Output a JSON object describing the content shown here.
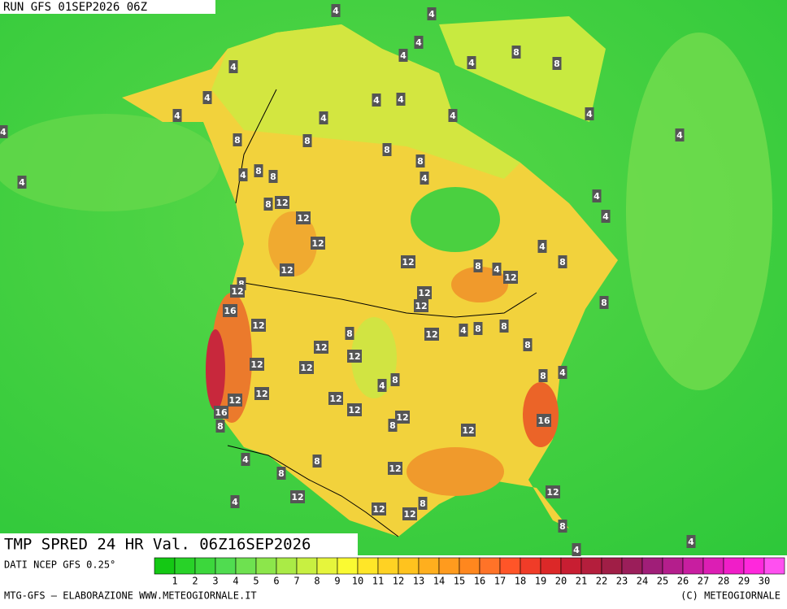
{
  "header": {
    "run": "RUN GFS 01SEP2026 06Z"
  },
  "map": {
    "labels": [
      "4",
      "4",
      "4",
      "4",
      "4",
      "8",
      "8",
      "4",
      "4",
      "4",
      "4",
      "4",
      "4",
      "4",
      "4",
      "4",
      "4",
      "8",
      "8",
      "8",
      "8",
      "8",
      "8",
      "4",
      "4",
      "4",
      "8",
      "12",
      "12",
      "4",
      "4",
      "12",
      "4",
      "12",
      "12",
      "8",
      "4",
      "12",
      "8",
      "8",
      "12",
      "12",
      "12",
      "16",
      "8",
      "12",
      "8",
      "4",
      "8",
      "8",
      "12",
      "8",
      "12",
      "12",
      "12",
      "12",
      "8",
      "4",
      "8",
      "4",
      "12",
      "12",
      "12",
      "12",
      "16",
      "12",
      "8",
      "16",
      "12",
      "8",
      "4",
      "8",
      "8",
      "12",
      "12",
      "12",
      "4",
      "8",
      "12",
      "12",
      "8",
      "4",
      "4"
    ]
  },
  "title": "TMP SPRED 24 HR Val. 06Z16SEP2026",
  "legend": {
    "source": "DATI NCEP GFS 0.25°",
    "colors": [
      "#14c814",
      "#28d228",
      "#3cd73c",
      "#50dc50",
      "#6ee150",
      "#8ce64b",
      "#aaeb46",
      "#c8f041",
      "#e6f53c",
      "#fafa32",
      "#ffe628",
      "#ffd223",
      "#ffc31e",
      "#ffaf1e",
      "#ff9b1e",
      "#ff871e",
      "#ff7328",
      "#ff5528",
      "#f03c28",
      "#dc2828",
      "#c81e32",
      "#b41e3c",
      "#a01e46",
      "#9b1e5a",
      "#a01e78",
      "#b41e8c",
      "#c81ea0",
      "#dc1eb4",
      "#f01ec8",
      "#ff28dc",
      "#ff50f0"
    ],
    "labels": [
      1,
      2,
      3,
      4,
      5,
      6,
      7,
      8,
      9,
      10,
      11,
      12,
      13,
      14,
      15,
      16,
      17,
      18,
      19,
      20,
      21,
      22,
      23,
      24,
      25,
      26,
      27,
      28,
      29,
      30
    ]
  },
  "footer": {
    "left": "MTG-GFS — ELABORAZIONE WWW.METEOGIORNALE.IT",
    "right": "(C) METEOGIORNALE"
  }
}
